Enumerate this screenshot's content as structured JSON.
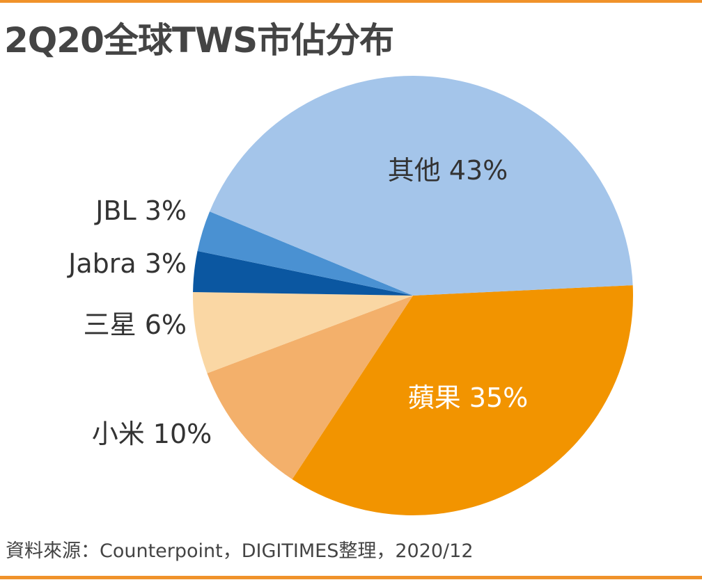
{
  "chart_data": {
    "type": "pie",
    "title": "2Q20全球TWS市佔分布",
    "source": "資料來源：Counterpoint，DIGITIMES整理，2020/12",
    "slices": [
      {
        "name": "蘋果",
        "value": 35,
        "label": "蘋果 35%",
        "color": "#f29400",
        "label_color": "#ffffff"
      },
      {
        "name": "小米",
        "value": 10,
        "label": "小米 10%",
        "color": "#f3b06b",
        "label_color": "#333333"
      },
      {
        "name": "三星",
        "value": 6,
        "label": "三星 6%",
        "color": "#fad7a4",
        "label_color": "#333333"
      },
      {
        "name": "Jabra",
        "value": 3,
        "label": "Jabra 3%",
        "color": "#0b57a1",
        "label_color": "#333333"
      },
      {
        "name": "JBL",
        "value": 3,
        "label": "JBL 3%",
        "color": "#4a91d2",
        "label_color": "#333333"
      },
      {
        "name": "其他",
        "value": 43,
        "label": "其他 43%",
        "color": "#a4c5ea",
        "label_color": "#333333"
      }
    ]
  }
}
